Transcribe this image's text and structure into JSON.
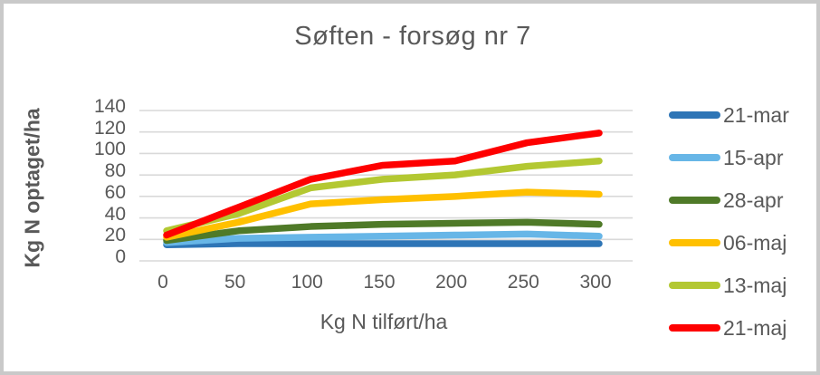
{
  "title": "Søften - forsøg nr 7",
  "chart_data": {
    "type": "line",
    "title": "Søften - forsøg nr 7",
    "xlabel": "Kg N tilført/ha",
    "ylabel": "Kg N optaget/ha",
    "x": [
      0,
      50,
      100,
      150,
      200,
      250,
      300
    ],
    "x_tick_labels": [
      "0",
      "50",
      "100",
      "150",
      "200",
      "250",
      "300"
    ],
    "y_ticks": [
      0,
      20,
      40,
      60,
      80,
      100,
      120,
      140
    ],
    "xlim": [
      0,
      300
    ],
    "ylim": [
      0,
      140
    ],
    "grid": "horizontal-only",
    "legend_position": "right",
    "series": [
      {
        "name": "21-mar",
        "color": "#2E75B6",
        "values": [
          15,
          16,
          16,
          16,
          16,
          16,
          16
        ]
      },
      {
        "name": "15-apr",
        "color": "#67B6E7",
        "values": [
          17,
          21,
          22,
          23,
          24,
          25,
          23
        ]
      },
      {
        "name": "28-apr",
        "color": "#4F7A28",
        "values": [
          19,
          28,
          32,
          34,
          35,
          36,
          34
        ]
      },
      {
        "name": "06-maj",
        "color": "#FFC000",
        "values": [
          22,
          36,
          53,
          57,
          60,
          64,
          62
        ]
      },
      {
        "name": "13-maj",
        "color": "#B3C832",
        "values": [
          28,
          44,
          68,
          76,
          80,
          88,
          93
        ]
      },
      {
        "name": "21-maj",
        "color": "#FE0000",
        "values": [
          24,
          50,
          76,
          89,
          93,
          110,
          119
        ]
      }
    ]
  },
  "colors": {
    "text": "#595959",
    "gridline": "#D9D9D9",
    "frame_border": "#C9C9C9",
    "background": "#FFFFFF"
  }
}
